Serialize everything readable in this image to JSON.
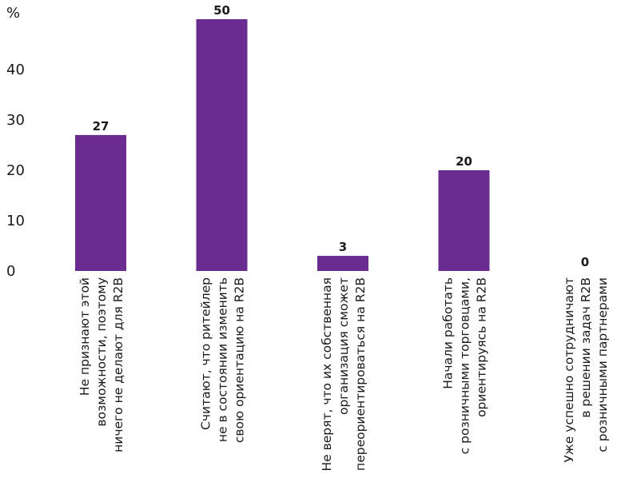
{
  "chart_data": {
    "type": "bar",
    "unit_label": "%",
    "ylim": [
      0,
      50
    ],
    "yticks": [
      "0",
      "10",
      "20",
      "30",
      "40"
    ],
    "bar_color": "#6a2c91",
    "grid": false,
    "categories": [
      [
        "Не признают этой",
        "возможности, поэтому",
        "ничего не делают для R2B"
      ],
      [
        "Считают, что ритейлер",
        "не в состоянии изменить",
        "свою ориентацию на R2B"
      ],
      [
        "Не верят, что их собственная",
        "организация сможет",
        "переориентироваться на R2B"
      ],
      [
        "Начали работать",
        "с розничными торговцами,",
        "ориентируясь на R2B"
      ],
      [
        "Уже успешно сотрудничают",
        "в решении задач R2B",
        "с розничными партнерами"
      ]
    ],
    "values": [
      27,
      50,
      3,
      20,
      0
    ],
    "value_labels": [
      "27",
      "50",
      "3",
      "20",
      "0"
    ]
  }
}
